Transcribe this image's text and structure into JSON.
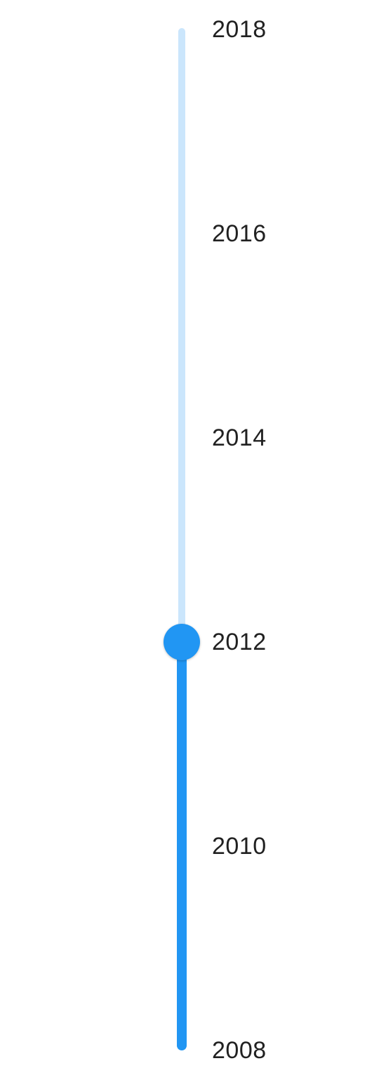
{
  "slider": {
    "min": 2008,
    "max": 2018,
    "value": 2012,
    "orientation": "vertical",
    "marks": [
      {
        "value": 2018,
        "label": "2018"
      },
      {
        "value": 2016,
        "label": "2016"
      },
      {
        "value": 2014,
        "label": "2014"
      },
      {
        "value": 2012,
        "label": "2012"
      },
      {
        "value": 2010,
        "label": "2010"
      },
      {
        "value": 2008,
        "label": "2008"
      }
    ]
  },
  "colors": {
    "accent": "#2196f3",
    "rail": "#cbe6fc",
    "label": "#212121"
  }
}
